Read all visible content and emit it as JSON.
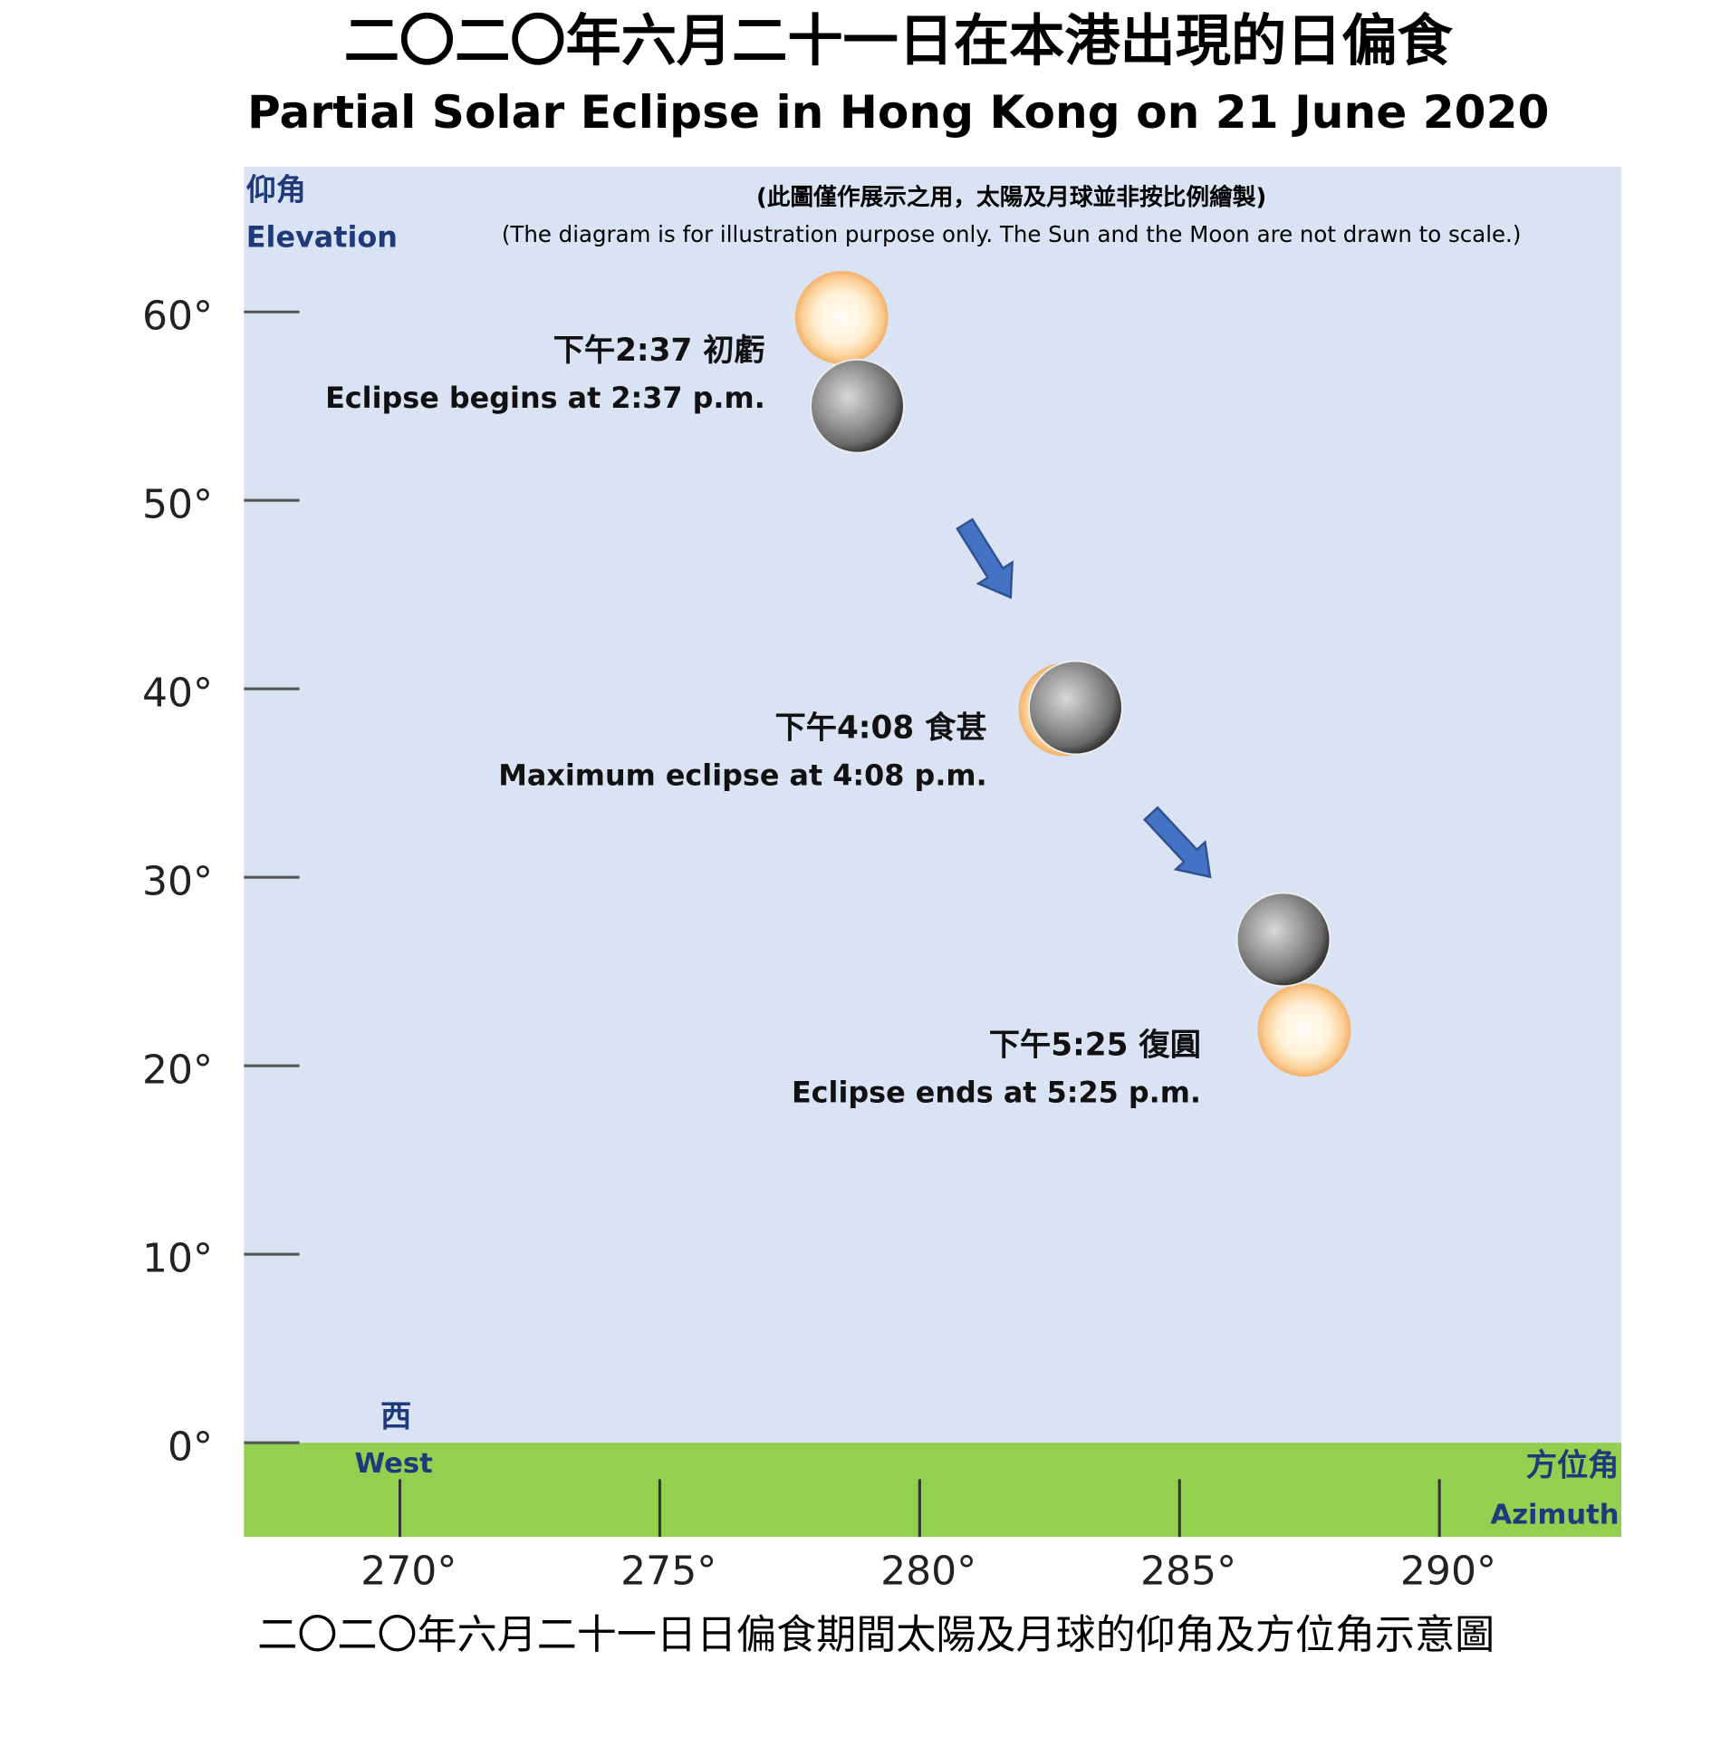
{
  "chart_data": {
    "type": "eclipse",
    "title": "二〇二〇年六月二十一日在本港出現的日偏食",
    "subtitle": "Partial Solar Eclipse in Hong Kong on 21 June 2020",
    "note_zh": "(此圖僅作展示之用，太陽及月球並非按比例繪製)",
    "note_en": "(The diagram is for illustration purpose only.  The Sun and the Moon are not drawn to scale.)",
    "y_label_zh": "仰角",
    "y_label_en": "Elevation",
    "x_label_zh": "方位角",
    "x_label_en": "Azimuth",
    "west_zh": "西",
    "west_en": "West",
    "sky_color": "#dae3f3",
    "ground_color": "#92d050",
    "xlim": [
      267,
      293.5
    ],
    "ylim": [
      -5,
      67.7
    ],
    "xticks": [
      {
        "value": 270,
        "label": "270°"
      },
      {
        "value": 275,
        "label": "275°"
      },
      {
        "value": 280,
        "label": "280°"
      },
      {
        "value": 285,
        "label": "285°"
      },
      {
        "value": 290,
        "label": "290°"
      }
    ],
    "yticks": [
      {
        "value": 0,
        "label": "0°"
      },
      {
        "value": 10,
        "label": "10°"
      },
      {
        "value": 20,
        "label": "20°"
      },
      {
        "value": 30,
        "label": "30°"
      },
      {
        "value": 40,
        "label": "40°"
      },
      {
        "value": 50,
        "label": "50°"
      },
      {
        "value": 60,
        "label": "60°"
      }
    ],
    "events": [
      {
        "label_zh": "下午2:37 初虧",
        "label_en": "Eclipse begins at 2:37 p.m.",
        "sun": {
          "azimuth": 278.5,
          "elevation": 59.7
        },
        "moon": {
          "azimuth": 278.8,
          "elevation": 55.0
        }
      },
      {
        "label_zh": "下午4:08 食甚",
        "label_en": "Maximum  eclipse at 4:08 p.m.",
        "sun": {
          "azimuth": 282.8,
          "elevation": 38.9
        },
        "moon": {
          "azimuth": 283.0,
          "elevation": 39.0
        }
      },
      {
        "label_zh": "下午5:25 復圓",
        "label_en": "Eclipse ends at 5:25 p.m.",
        "sun": {
          "azimuth": 287.4,
          "elevation": 21.9
        },
        "moon": {
          "azimuth": 287.0,
          "elevation": 26.7
        }
      }
    ],
    "caption": "二〇二〇年六月二十一日日偏食期間太陽及月球的仰角及方位角示意圖"
  }
}
